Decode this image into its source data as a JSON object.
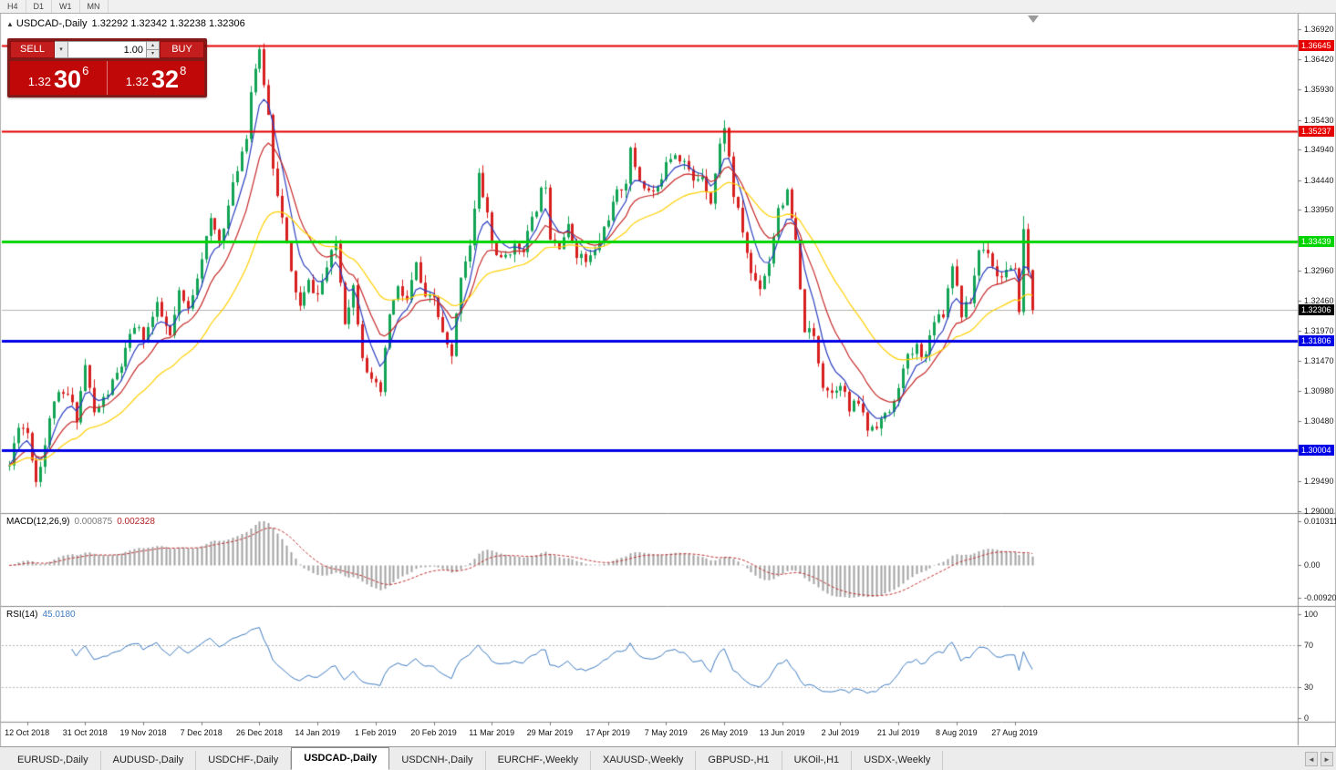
{
  "toolbar": {
    "timeframes": [
      "H4",
      "D1",
      "W1",
      "MN"
    ]
  },
  "chart_header": {
    "collapse_icon": "▲",
    "symbol": "USDCAD-,Daily",
    "ohlc": "1.32292 1.32342 1.32238 1.32306"
  },
  "trade_panel": {
    "sell_label": "SELL",
    "buy_label": "BUY",
    "volume": "1.00",
    "dropdown_icon": "▾",
    "spinner_up_icon": "▴",
    "spinner_down_icon": "▾",
    "sell_price": {
      "prefix": "1.32",
      "big": "30",
      "sup": "6"
    },
    "buy_price": {
      "prefix": "1.32",
      "big": "32",
      "sup": "8"
    }
  },
  "indicators": {
    "macd": {
      "label": "MACD(12,26,9)",
      "value_main": "0.000875",
      "value_signal": "0.002328",
      "scale_max": "0.010311",
      "scale_zero": "0.00",
      "scale_min": "-0.009203"
    },
    "rsi": {
      "label": "RSI(14)",
      "value": "45.0180",
      "scale": [
        {
          "v": 100,
          "label": "100"
        },
        {
          "v": 70,
          "label": "70"
        },
        {
          "v": 30,
          "label": "30"
        },
        {
          "v": 0,
          "label": "0"
        }
      ]
    }
  },
  "tab_bar": {
    "tabs": [
      "EURUSD-,Daily",
      "AUDUSD-,Daily",
      "USDCHF-,Daily",
      "USDCAD-,Daily",
      "USDCNH-,Daily",
      "EURCHF-,Weekly",
      "XAUUSD-,Weekly",
      "GBPUSD-,H1",
      "UKOil-,H1",
      "USDX-,Weekly"
    ],
    "active_index": 3,
    "left_arrow": "◄",
    "right_arrow": "►"
  },
  "chart_data": {
    "type": "candlestick",
    "symbol": "USDCAD",
    "period": "Daily",
    "ylim": [
      1.28985,
      1.37145
    ],
    "y_ticks": [
      "1.36920",
      "1.36420",
      "1.35930",
      "1.35430",
      "1.34940",
      "1.34440",
      "1.33950",
      "1.33450",
      "1.32960",
      "1.32460",
      "1.31970",
      "1.31470",
      "1.30980",
      "1.30480",
      "1.29990",
      "1.29490",
      "1.29000"
    ],
    "x_labels": [
      {
        "day": 4,
        "text": "12 Oct 2018"
      },
      {
        "day": 17,
        "text": "31 Oct 2018"
      },
      {
        "day": 30,
        "text": "19 Nov 2018"
      },
      {
        "day": 43,
        "text": "7 Dec 2018"
      },
      {
        "day": 56,
        "text": "26 Dec 2018"
      },
      {
        "day": 69,
        "text": "14 Jan 2019"
      },
      {
        "day": 82,
        "text": "1 Feb 2019"
      },
      {
        "day": 95,
        "text": "20 Feb 2019"
      },
      {
        "day": 108,
        "text": "11 Mar 2019"
      },
      {
        "day": 121,
        "text": "29 Mar 2019"
      },
      {
        "day": 134,
        "text": "17 Apr 2019"
      },
      {
        "day": 147,
        "text": "7 May 2019"
      },
      {
        "day": 160,
        "text": "26 May 2019"
      },
      {
        "day": 173,
        "text": "13 Jun 2019"
      },
      {
        "day": 186,
        "text": "2 Jul 2019"
      },
      {
        "day": 199,
        "text": "21 Jul 2019"
      },
      {
        "day": 212,
        "text": "8 Aug 2019"
      },
      {
        "day": 225,
        "text": "27 Aug 2019"
      }
    ],
    "candles": {
      "count": 230,
      "seed": 11,
      "noise": 0.0019,
      "wick": 0.0014,
      "up_color": "#12a455",
      "down_color": "#d81f1f",
      "last_close": 1.32306,
      "last_low": 1.32238,
      "spike": {
        "day": 227,
        "high": 1.3385
      },
      "anchors": [
        [
          0,
          1.2975
        ],
        [
          2,
          1.3045
        ],
        [
          4,
          1.303
        ],
        [
          6,
          1.295
        ],
        [
          8,
          1.301
        ],
        [
          10,
          1.3085
        ],
        [
          13,
          1.309
        ],
        [
          15,
          1.3055
        ],
        [
          17,
          1.314
        ],
        [
          19,
          1.306
        ],
        [
          22,
          1.3095
        ],
        [
          25,
          1.314
        ],
        [
          28,
          1.3205
        ],
        [
          30,
          1.3185
        ],
        [
          33,
          1.3235
        ],
        [
          36,
          1.3185
        ],
        [
          38,
          1.3255
        ],
        [
          40,
          1.323
        ],
        [
          43,
          1.332
        ],
        [
          45,
          1.3375
        ],
        [
          47,
          1.3345
        ],
        [
          49,
          1.34
        ],
        [
          51,
          1.3465
        ],
        [
          53,
          1.352
        ],
        [
          54,
          1.359
        ],
        [
          55,
          1.363
        ],
        [
          56,
          1.365
        ],
        [
          57,
          1.3605
        ],
        [
          58,
          1.355
        ],
        [
          59,
          1.347
        ],
        [
          61,
          1.338
        ],
        [
          63,
          1.329
        ],
        [
          65,
          1.3235
        ],
        [
          67,
          1.3275
        ],
        [
          69,
          1.3255
        ],
        [
          71,
          1.33
        ],
        [
          73,
          1.334
        ],
        [
          75,
          1.3215
        ],
        [
          77,
          1.327
        ],
        [
          79,
          1.316
        ],
        [
          81,
          1.311
        ],
        [
          83,
          1.3095
        ],
        [
          85,
          1.3225
        ],
        [
          87,
          1.3265
        ],
        [
          89,
          1.3245
        ],
        [
          91,
          1.3305
        ],
        [
          93,
          1.3245
        ],
        [
          95,
          1.325
        ],
        [
          97,
          1.319
        ],
        [
          99,
          1.315
        ],
        [
          101,
          1.329
        ],
        [
          103,
          1.334
        ],
        [
          105,
          1.345
        ],
        [
          107,
          1.339
        ],
        [
          108,
          1.334
        ],
        [
          110,
          1.331
        ],
        [
          112,
          1.333
        ],
        [
          115,
          1.3335
        ],
        [
          117,
          1.3375
        ],
        [
          119,
          1.3425
        ],
        [
          120,
          1.344
        ],
        [
          121,
          1.3355
        ],
        [
          123,
          1.334
        ],
        [
          125,
          1.3365
        ],
        [
          127,
          1.3325
        ],
        [
          129,
          1.331
        ],
        [
          131,
          1.3325
        ],
        [
          133,
          1.3365
        ],
        [
          134,
          1.3385
        ],
        [
          136,
          1.342
        ],
        [
          138,
          1.3445
        ],
        [
          139,
          1.349
        ],
        [
          141,
          1.3445
        ],
        [
          143,
          1.3425
        ],
        [
          145,
          1.3425
        ],
        [
          147,
          1.348
        ],
        [
          149,
          1.349
        ],
        [
          151,
          1.3475
        ],
        [
          153,
          1.344
        ],
        [
          155,
          1.3455
        ],
        [
          157,
          1.341
        ],
        [
          159,
          1.35
        ],
        [
          160,
          1.3535
        ],
        [
          161,
          1.348
        ],
        [
          162,
          1.342
        ],
        [
          164,
          1.336
        ],
        [
          166,
          1.329
        ],
        [
          168,
          1.327
        ],
        [
          170,
          1.331
        ],
        [
          172,
          1.34
        ],
        [
          174,
          1.342
        ],
        [
          175,
          1.338
        ],
        [
          176,
          1.334
        ],
        [
          177,
          1.326
        ],
        [
          178,
          1.32
        ],
        [
          180,
          1.3185
        ],
        [
          182,
          1.311
        ],
        [
          184,
          1.3095
        ],
        [
          186,
          1.3115
        ],
        [
          188,
          1.3065
        ],
        [
          190,
          1.308
        ],
        [
          192,
          1.3035
        ],
        [
          194,
          1.3045
        ],
        [
          196,
          1.3055
        ],
        [
          198,
          1.3075
        ],
        [
          199,
          1.311
        ],
        [
          201,
          1.315
        ],
        [
          203,
          1.317
        ],
        [
          205,
          1.3155
        ],
        [
          207,
          1.322
        ],
        [
          209,
          1.3225
        ],
        [
          211,
          1.331
        ],
        [
          213,
          1.3225
        ],
        [
          215,
          1.3245
        ],
        [
          217,
          1.333
        ],
        [
          219,
          1.333
        ],
        [
          221,
          1.3285
        ],
        [
          223,
          1.3295
        ],
        [
          225,
          1.329
        ],
        [
          226,
          1.3235
        ],
        [
          227,
          1.336
        ],
        [
          228,
          1.3295
        ],
        [
          229,
          1.32306
        ]
      ]
    },
    "bid_line": {
      "price": 1.32306,
      "label": "1.32306",
      "line_color": "#b4b4b4",
      "badge_color": "#000000"
    },
    "hlines": [
      {
        "price": 1.36645,
        "label": "1.36645",
        "color": "#e60000",
        "width": 2
      },
      {
        "price": 1.35237,
        "label": "1.35237",
        "color": "#e60000",
        "width": 2
      },
      {
        "price": 1.33439,
        "label": "1.33439",
        "color": "#00d400",
        "width": 3
      },
      {
        "price": 1.31806,
        "label": "1.31806",
        "color": "#0000e6",
        "width": 3
      },
      {
        "price": 1.30004,
        "label": "1.30004",
        "color": "#0000e6",
        "width": 3
      }
    ],
    "moving_averages": [
      {
        "period": 6,
        "color": "#2b3fbf"
      },
      {
        "period": 13,
        "color": "#c62828"
      },
      {
        "period": 30,
        "color": "#ffd000"
      }
    ],
    "macd": {
      "fast": 12,
      "slow": 26,
      "signal": 9,
      "bar_color": "#a2a2a2",
      "signal_color": "#c03030"
    },
    "rsi": {
      "period": 14,
      "color": "#3f7cc1",
      "levels": [
        70,
        30
      ]
    }
  }
}
